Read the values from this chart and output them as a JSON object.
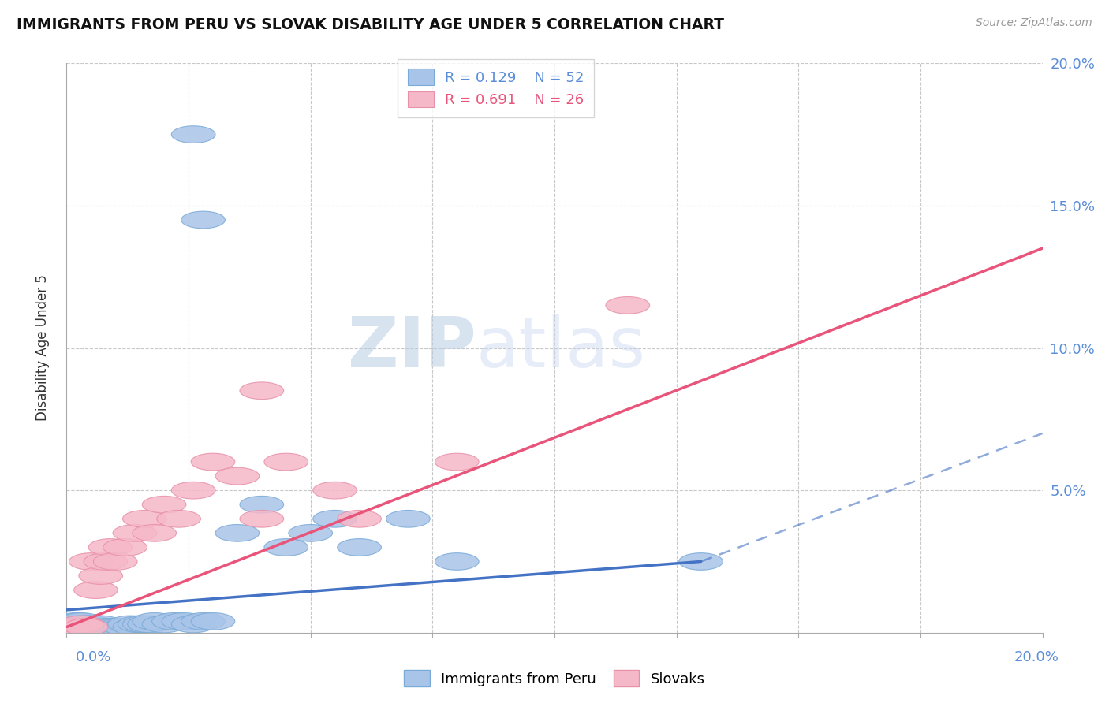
{
  "title": "IMMIGRANTS FROM PERU VS SLOVAK DISABILITY AGE UNDER 5 CORRELATION CHART",
  "source": "Source: ZipAtlas.com",
  "ylabel": "Disability Age Under 5",
  "yticks": [
    0.0,
    0.05,
    0.1,
    0.15,
    0.2
  ],
  "ytick_labels": [
    "",
    "5.0%",
    "10.0%",
    "15.0%",
    "20.0%"
  ],
  "xlim": [
    0.0,
    0.2
  ],
  "ylim": [
    0.0,
    0.2
  ],
  "peru_R": 0.129,
  "peru_N": 52,
  "slovak_R": 0.691,
  "slovak_N": 26,
  "peru_color": "#a8c4e8",
  "slovak_color": "#f5b8c8",
  "peru_edge_color": "#7aaad8",
  "slovak_edge_color": "#e890a8",
  "peru_line_color": "#4472c4",
  "slovak_line_color": "#e8547a",
  "legend_peru_label": "Immigrants from Peru",
  "legend_slovak_label": "Slovaks",
  "title_color": "#111111",
  "axis_label_color": "#5b8dd9",
  "grid_color": "#c8c8c8",
  "watermark_zip_color": "#c8d8ee",
  "watermark_atlas_color": "#c8d8ee",
  "peru_line_solid_end": 0.13,
  "peru_line_dashed_start": 0.13,
  "peru_line_dashed_end": 0.2,
  "peru_scatter_x": [
    0.001,
    0.001,
    0.001,
    0.002,
    0.002,
    0.002,
    0.002,
    0.003,
    0.003,
    0.003,
    0.003,
    0.004,
    0.004,
    0.004,
    0.005,
    0.005,
    0.005,
    0.006,
    0.006,
    0.007,
    0.007,
    0.007,
    0.008,
    0.008,
    0.009,
    0.009,
    0.01,
    0.011,
    0.012,
    0.013,
    0.014,
    0.015,
    0.016,
    0.017,
    0.018,
    0.02,
    0.022,
    0.024,
    0.026,
    0.028,
    0.03,
    0.035,
    0.04,
    0.045,
    0.05,
    0.055,
    0.06,
    0.07,
    0.08,
    0.13,
    0.026,
    0.028
  ],
  "peru_scatter_y": [
    0.001,
    0.002,
    0.003,
    0.001,
    0.002,
    0.003,
    0.004,
    0.001,
    0.002,
    0.003,
    0.004,
    0.001,
    0.002,
    0.003,
    0.001,
    0.002,
    0.003,
    0.001,
    0.002,
    0.001,
    0.002,
    0.003,
    0.001,
    0.002,
    0.001,
    0.002,
    0.002,
    0.002,
    0.002,
    0.003,
    0.002,
    0.003,
    0.003,
    0.003,
    0.004,
    0.003,
    0.004,
    0.004,
    0.003,
    0.004,
    0.004,
    0.035,
    0.045,
    0.03,
    0.035,
    0.04,
    0.03,
    0.04,
    0.025,
    0.025,
    0.175,
    0.145
  ],
  "slovak_scatter_x": [
    0.001,
    0.002,
    0.003,
    0.004,
    0.005,
    0.006,
    0.007,
    0.008,
    0.009,
    0.01,
    0.012,
    0.014,
    0.016,
    0.018,
    0.02,
    0.023,
    0.026,
    0.03,
    0.035,
    0.04,
    0.045,
    0.055,
    0.06,
    0.08,
    0.115,
    0.04
  ],
  "slovak_scatter_y": [
    0.001,
    0.002,
    0.003,
    0.002,
    0.025,
    0.015,
    0.02,
    0.025,
    0.03,
    0.025,
    0.03,
    0.035,
    0.04,
    0.035,
    0.045,
    0.04,
    0.05,
    0.06,
    0.055,
    0.04,
    0.06,
    0.05,
    0.04,
    0.06,
    0.115,
    0.085
  ]
}
